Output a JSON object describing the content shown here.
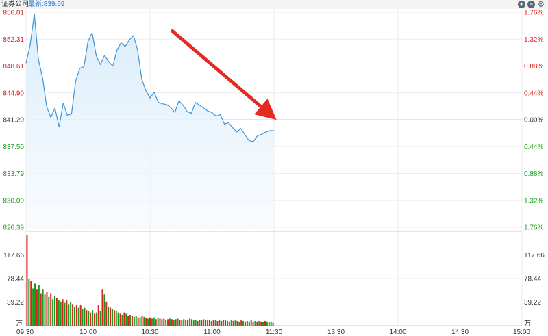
{
  "header": {
    "title": "证券公司",
    "latest": "最新:839.69",
    "zoom_in_icon": "plus-circle-icon",
    "zoom_out_icon": "minus-circle-icon",
    "settings_icon": "gear-icon"
  },
  "colors": {
    "line": "#3d93d9",
    "fill_top": "#d6ebfa",
    "up": "#e02020",
    "down": "#1a9a1a",
    "grid": "#eeeeee",
    "base": "#cccccc",
    "arrow": "#e52b21"
  },
  "chart_data": [
    {
      "type": "line",
      "title": "",
      "xlabel": "",
      "ylabel": "",
      "x_ticks": [
        "09:30",
        "10:00",
        "10:30",
        "11:00",
        "11:30",
        "13:30",
        "14:00",
        "14:30",
        "15:00"
      ],
      "y_ticks_left": [
        "856.01",
        "852.31",
        "848.61",
        "844.90",
        "841.20",
        "837.50",
        "833.79",
        "830.09",
        "826.39"
      ],
      "y_ticks_right": [
        "1.76%",
        "1.32%",
        "0.88%",
        "0.44%",
        "0.00%",
        "0.44%",
        "0.88%",
        "1.32%",
        "1.76%"
      ],
      "ylim": [
        826.39,
        856.01
      ],
      "previous_close": 841.2,
      "latest": 839.69,
      "series": [
        {
          "times": [
            "09:30",
            "09:32",
            "09:34",
            "09:36",
            "09:38",
            "09:40",
            "09:42",
            "09:44",
            "09:46",
            "09:48",
            "09:50",
            "09:52",
            "09:54",
            "09:56",
            "09:58",
            "10:00",
            "10:02",
            "10:04",
            "10:06",
            "10:08",
            "10:10",
            "10:12",
            "10:14",
            "10:16",
            "10:18",
            "10:20",
            "10:22",
            "10:24",
            "10:26",
            "10:28",
            "10:30",
            "10:32",
            "10:34",
            "10:36",
            "10:38",
            "10:40",
            "10:42",
            "10:44",
            "10:46",
            "10:48",
            "10:50",
            "10:52",
            "10:54",
            "10:56",
            "10:58",
            "11:00",
            "11:02",
            "11:04",
            "11:06",
            "11:08",
            "11:10",
            "11:12",
            "11:14",
            "11:16",
            "11:18",
            "11:20",
            "11:22",
            "11:24",
            "11:26",
            "11:28",
            "11:30"
          ],
          "values": [
            849.0,
            851.5,
            855.8,
            849.5,
            847.0,
            843.0,
            841.5,
            842.8,
            840.2,
            843.5,
            841.8,
            842.0,
            846.5,
            848.3,
            848.5,
            852.0,
            853.2,
            850.0,
            848.8,
            850.1,
            849.2,
            848.6,
            850.8,
            851.8,
            851.3,
            852.2,
            852.8,
            850.8,
            846.8,
            845.2,
            844.2,
            845.0,
            843.6,
            843.4,
            843.3,
            842.9,
            842.2,
            843.8,
            843.2,
            842.3,
            842.1,
            843.6,
            843.2,
            842.8,
            842.4,
            842.2,
            841.7,
            841.9,
            840.6,
            840.8,
            840.1,
            839.5,
            840.0,
            839.1,
            838.3,
            838.2,
            839.0,
            839.2,
            839.5,
            839.69,
            839.69
          ]
        }
      ]
    },
    {
      "type": "bar",
      "title": "",
      "unit_label": "万",
      "y_ticks": [
        "117.66",
        "78.44",
        "39.22"
      ],
      "ylim": [
        0,
        156.88
      ],
      "values": [
        150,
        78,
        74,
        62,
        70,
        60,
        68,
        54,
        60,
        52,
        56,
        48,
        54,
        44,
        50,
        46,
        42,
        40,
        44,
        38,
        42,
        36,
        40,
        36,
        32,
        34,
        30,
        34,
        28,
        30,
        26,
        24,
        22,
        26,
        20,
        22,
        34,
        24,
        60,
        52,
        40,
        32,
        30,
        28,
        26,
        24,
        22,
        20,
        18,
        22,
        20,
        16,
        18,
        16,
        15,
        16,
        14,
        14,
        16,
        15,
        13,
        12,
        14,
        12,
        14,
        11,
        13,
        12,
        11,
        12,
        10,
        11,
        12,
        11,
        10,
        11,
        12,
        10,
        9,
        11,
        10,
        10,
        12,
        11,
        9,
        10,
        8,
        10,
        9,
        11,
        10,
        9,
        10,
        8,
        9,
        10,
        8,
        9,
        8,
        10,
        9,
        8,
        7,
        9,
        8,
        9,
        8,
        7,
        9,
        8,
        7,
        8,
        7,
        9,
        7,
        8,
        7,
        8,
        7,
        6,
        8,
        7,
        6,
        7,
        5
      ],
      "colors": [
        "up",
        "down",
        "up",
        "down",
        "down",
        "up",
        "down",
        "up",
        "down",
        "down",
        "up",
        "down",
        "up",
        "down",
        "down",
        "up",
        "down",
        "down",
        "up",
        "down",
        "up",
        "down",
        "down",
        "up",
        "down",
        "up",
        "down",
        "up",
        "down",
        "down",
        "up",
        "down",
        "up",
        "down",
        "up",
        "down",
        "up",
        "down",
        "up",
        "down",
        "up",
        "down",
        "up",
        "down",
        "up",
        "down",
        "down",
        "up",
        "down",
        "up",
        "down",
        "up",
        "down",
        "up",
        "down",
        "down",
        "up",
        "down",
        "up",
        "down",
        "up",
        "down",
        "up",
        "down",
        "down",
        "up",
        "down",
        "up",
        "down",
        "up",
        "down",
        "up",
        "down",
        "up",
        "down",
        "up",
        "down",
        "up",
        "down",
        "up",
        "down",
        "up",
        "down",
        "up",
        "down",
        "down",
        "up",
        "down",
        "up",
        "down",
        "up",
        "down",
        "up",
        "down",
        "up",
        "down",
        "up",
        "down",
        "up",
        "down",
        "up",
        "down",
        "up",
        "down",
        "up",
        "down",
        "up",
        "down",
        "up",
        "down",
        "up",
        "down",
        "up",
        "down",
        "up",
        "down",
        "up",
        "down",
        "up",
        "down",
        "up"
      ]
    }
  ]
}
